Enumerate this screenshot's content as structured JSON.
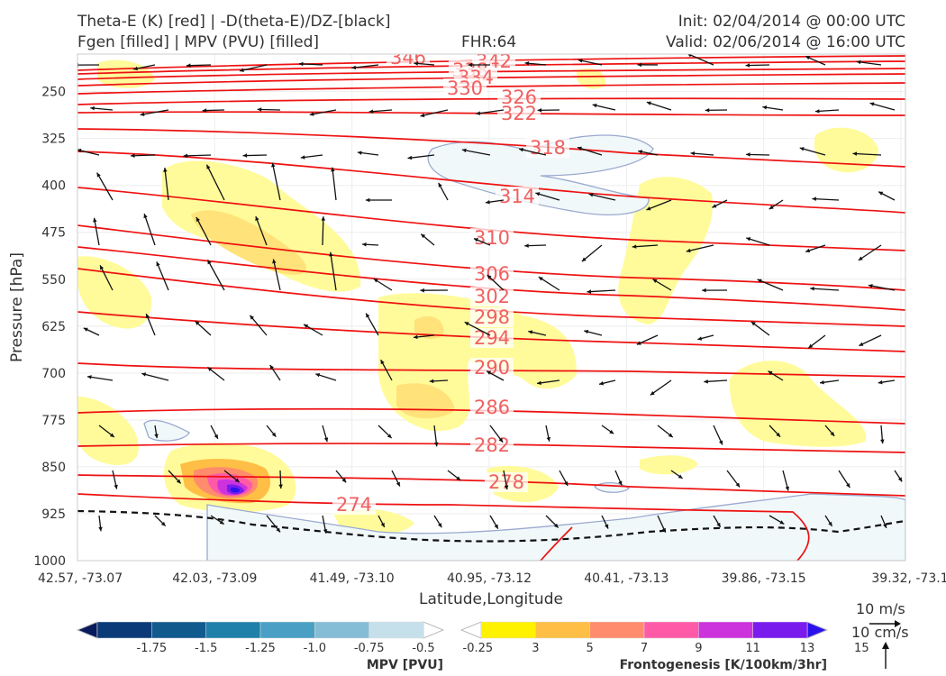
{
  "header": {
    "line1_left": "Theta-E (K) [red] | -D(theta-E)/DZ-[black]",
    "line2_left": "Fgen [filled] | MPV (PVU) [filled]",
    "fhr": "FHR:64",
    "init": "Init: 02/04/2014 @ 00:00 UTC",
    "valid": "Valid: 02/06/2014 @ 16:00 UTC"
  },
  "chart_data": {
    "type": "cross-section",
    "xlabel": "Latitude,Longitude",
    "ylabel": "Pressure [hPa]",
    "x_ticks": [
      "42.57, -73.07",
      "42.03, -73.09",
      "41.49, -73.10",
      "40.95, -73.12",
      "40.41, -73.13",
      "39.86, -73.15",
      "39.32, -73.1"
    ],
    "y_ticks": [
      250,
      325,
      400,
      475,
      550,
      625,
      700,
      775,
      850,
      925,
      1000
    ],
    "ylim": [
      1000,
      190
    ],
    "theta_e_labels": [
      "346",
      "342",
      "338",
      "334",
      "330",
      "326",
      "322",
      "318",
      "314",
      "310",
      "306",
      "302",
      "298",
      "294",
      "290",
      "286",
      "282",
      "278",
      "274"
    ],
    "theta_e_colour": "#ee1111",
    "mpv_colorbar": {
      "title": "MPV [PVU]",
      "ticks": [
        "-1.75",
        "-1.5",
        "-1.25",
        "-1.0",
        "-0.75",
        "-0.5",
        "-0.25"
      ],
      "colors": [
        "#061a5c",
        "#0b3a78",
        "#105a8e",
        "#1f80aa",
        "#4aa0c4",
        "#85bdd6",
        "#c5e0ea",
        "#ffffff"
      ]
    },
    "fgen_colorbar": {
      "title": "Frontogenesis [K/100km/3hr]",
      "ticks": [
        "3",
        "5",
        "7",
        "9",
        "11",
        "13",
        "15"
      ],
      "colors": [
        "#ffffff",
        "#fff200",
        "#ffbe45",
        "#ff8c6c",
        "#ff5aa8",
        "#cc33dd",
        "#7a1bee",
        "#2a12ee"
      ]
    },
    "wind_scale": {
      "horizontal": "10 m/s",
      "vertical": "10 cm/s"
    }
  }
}
